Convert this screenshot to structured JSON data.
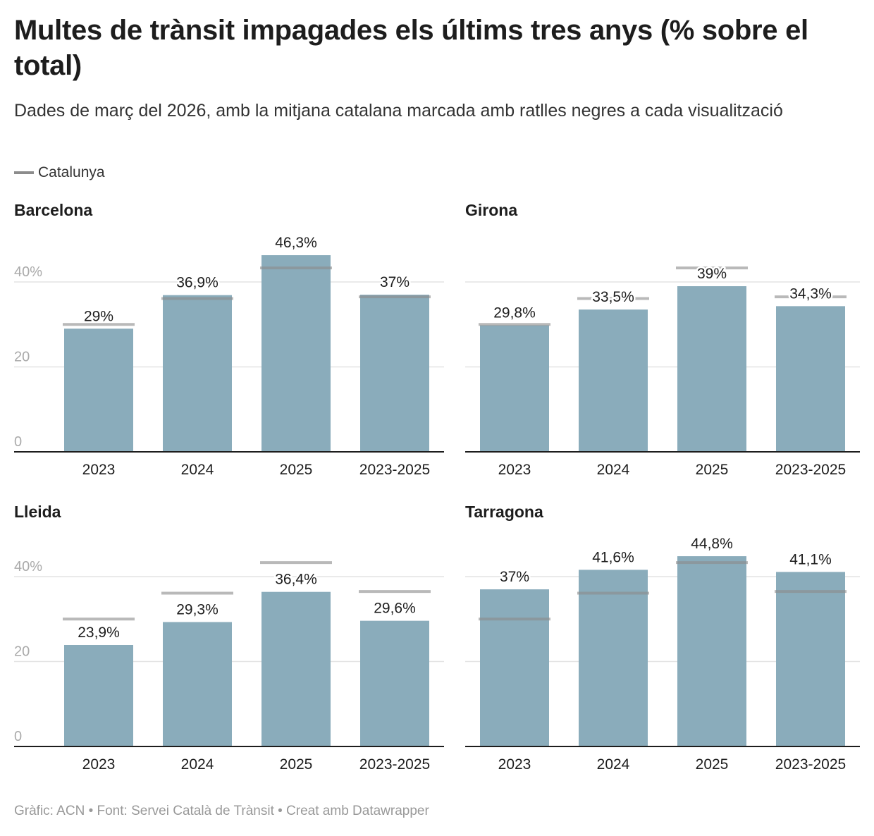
{
  "title": "Multes de trànsit impagades els últims tres anys (% sobre el total)",
  "subtitle": "Dades de març del 2026, amb la mitjana catalana marcada amb ratlles negres a cada visualització",
  "legend": {
    "label": "Catalunya"
  },
  "footer": "Gràfic: ACN • Font: Servei Català de Trànsit • Creat amb Datawrapper",
  "colors": {
    "bar": "#8aacbb",
    "reference_line": "#8c8c8c",
    "gridline": "#e3e3e3",
    "axis": "#1d1d1d"
  },
  "chart_data": [
    {
      "type": "bar",
      "title": "Barcelona",
      "categories": [
        "2023",
        "2024",
        "2025",
        "2023-2025"
      ],
      "values": [
        29,
        36.9,
        46.3,
        37
      ],
      "labels": [
        "29%",
        "36,9%",
        "46,3%",
        "37%"
      ],
      "reference": {
        "name": "Catalunya",
        "values": [
          30,
          36.1,
          43.3,
          36.5
        ]
      },
      "ylim": [
        0,
        46.3
      ],
      "yticks": [
        "0",
        "20",
        "40%"
      ],
      "grid": true
    },
    {
      "type": "bar",
      "title": "Girona",
      "categories": [
        "2023",
        "2024",
        "2025",
        "2023-2025"
      ],
      "values": [
        29.8,
        33.5,
        39,
        34.3
      ],
      "labels": [
        "29,8%",
        "33,5%",
        "39%",
        "34,3%"
      ],
      "reference": {
        "name": "Catalunya",
        "values": [
          30,
          36.1,
          43.3,
          36.5
        ]
      },
      "ylim": [
        0,
        46.3
      ],
      "grid": true
    },
    {
      "type": "bar",
      "title": "Lleida",
      "categories": [
        "2023",
        "2024",
        "2025",
        "2023-2025"
      ],
      "values": [
        23.9,
        29.3,
        36.4,
        29.6
      ],
      "labels": [
        "23,9%",
        "29,3%",
        "36,4%",
        "29,6%"
      ],
      "reference": {
        "name": "Catalunya",
        "values": [
          30,
          36.1,
          43.3,
          36.5
        ]
      },
      "ylim": [
        0,
        46.3
      ],
      "yticks": [
        "0",
        "20",
        "40%"
      ],
      "grid": true
    },
    {
      "type": "bar",
      "title": "Tarragona",
      "categories": [
        "2023",
        "2024",
        "2025",
        "2023-2025"
      ],
      "values": [
        37,
        41.6,
        44.8,
        41.1
      ],
      "labels": [
        "37%",
        "41,6%",
        "44,8%",
        "41,1%"
      ],
      "reference": {
        "name": "Catalunya",
        "values": [
          30,
          36.1,
          43.3,
          36.5
        ]
      },
      "ylim": [
        0,
        46.3
      ],
      "grid": true
    }
  ]
}
